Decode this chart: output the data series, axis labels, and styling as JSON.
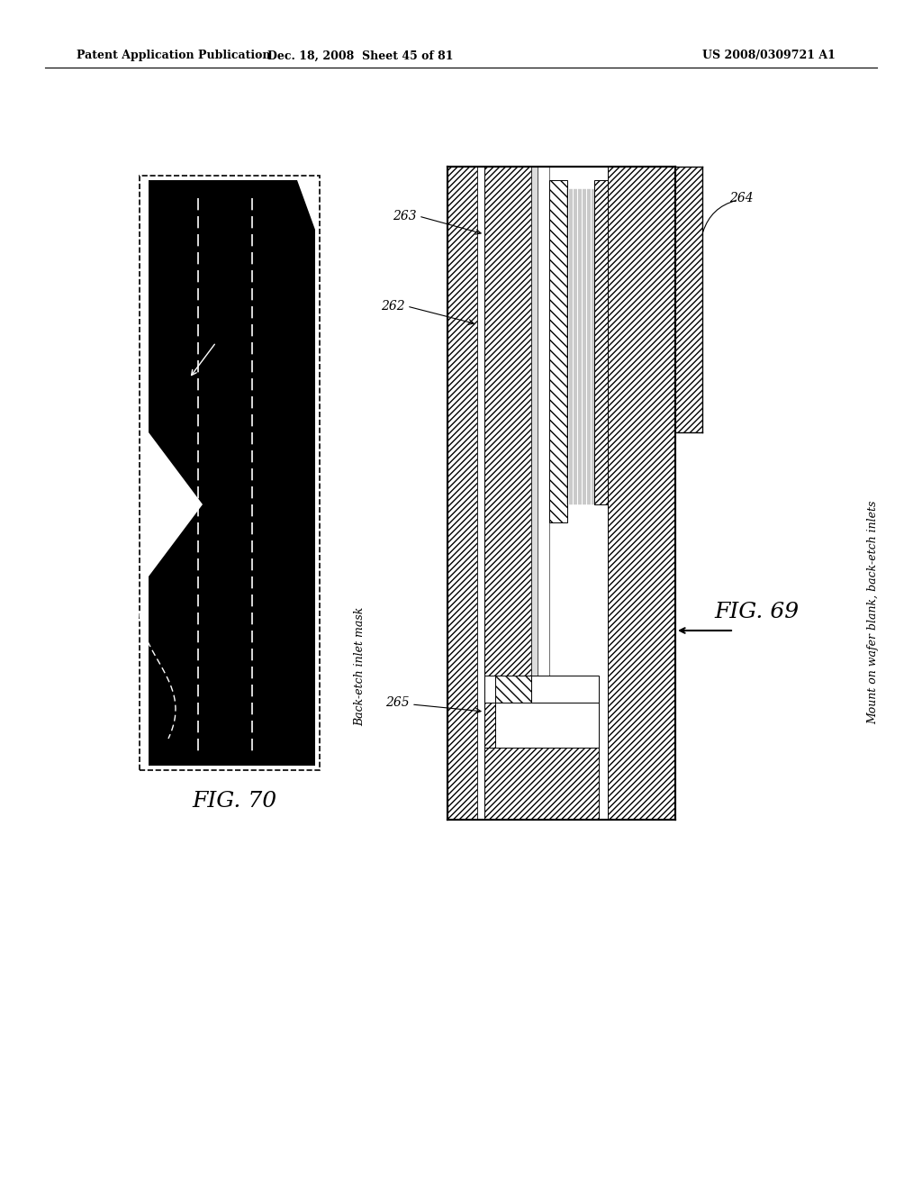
{
  "bg_color": "#ffffff",
  "header_text_left": "Patent Application Publication",
  "header_text_mid": "Dec. 18, 2008  Sheet 45 of 81",
  "header_text_right": "US 2008/0309721 A1",
  "fig70_label": "FIG. 70",
  "fig69_label": "FIG. 69",
  "label_262": "262",
  "label_263": "263",
  "label_264": "264",
  "label_265": "265",
  "caption_left": "Back-etch inlet mask",
  "caption_right": "Mount on wafer blank, back-etch inlets"
}
